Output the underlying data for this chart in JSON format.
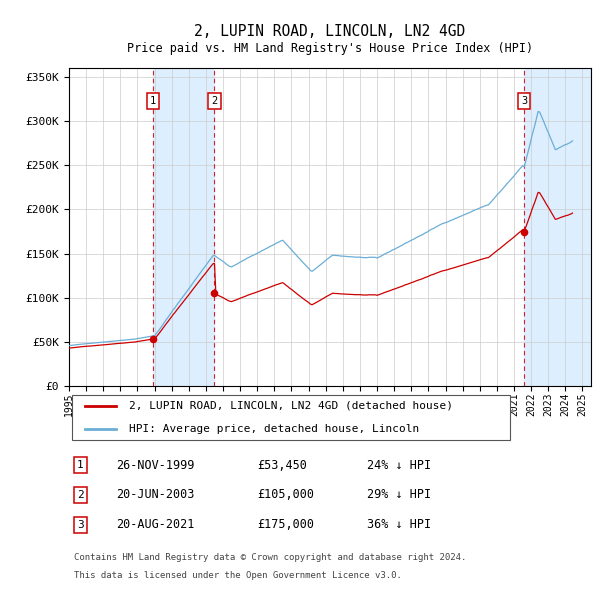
{
  "title": "2, LUPIN ROAD, LINCOLN, LN2 4GD",
  "subtitle": "Price paid vs. HM Land Registry's House Price Index (HPI)",
  "legend_line1": "2, LUPIN ROAD, LINCOLN, LN2 4GD (detached house)",
  "legend_line2": "HPI: Average price, detached house, Lincoln",
  "footer_line1": "Contains HM Land Registry data © Crown copyright and database right 2024.",
  "footer_line2": "This data is licensed under the Open Government Licence v3.0.",
  "transactions": [
    {
      "num": 1,
      "date": "26-NOV-1999",
      "price": "£53,450",
      "hpi": "24% ↓ HPI",
      "year": 1999.9
    },
    {
      "num": 2,
      "date": "20-JUN-2003",
      "price": "£105,000",
      "hpi": "29% ↓ HPI",
      "year": 2003.5
    },
    {
      "num": 3,
      "date": "20-AUG-2021",
      "price": "£175,000",
      "hpi": "36% ↓ HPI",
      "year": 2021.6
    }
  ],
  "price_paid_points": [
    [
      1999.9,
      53450
    ],
    [
      2003.5,
      105000
    ],
    [
      2021.6,
      175000
    ]
  ],
  "hpi_color": "#6baed6",
  "price_color": "#cc0000",
  "shade_color": "#ddeeff",
  "vline_color": "#cc0000",
  "ylim": [
    0,
    360000
  ],
  "xlim": [
    1995.0,
    2025.5
  ],
  "yticks": [
    0,
    50000,
    100000,
    150000,
    200000,
    250000,
    300000,
    350000
  ],
  "xticks": [
    1995,
    1996,
    1997,
    1998,
    1999,
    2000,
    2001,
    2002,
    2003,
    2004,
    2005,
    2006,
    2007,
    2008,
    2009,
    2010,
    2011,
    2012,
    2013,
    2014,
    2015,
    2016,
    2017,
    2018,
    2019,
    2020,
    2021,
    2022,
    2023,
    2024,
    2025
  ]
}
